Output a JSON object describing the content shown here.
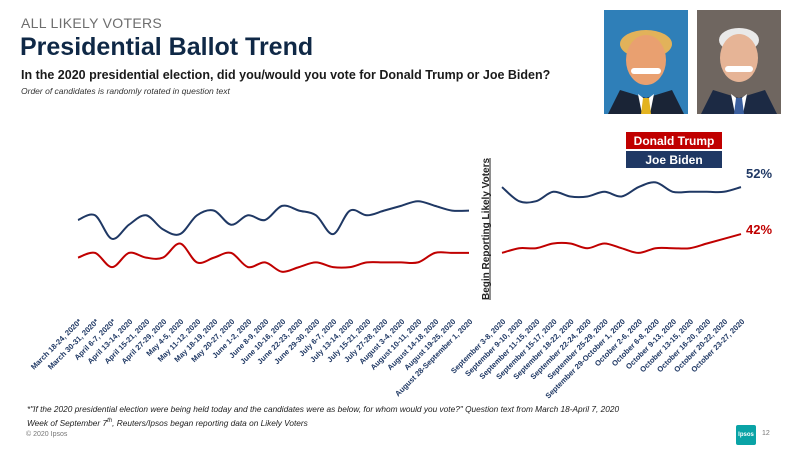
{
  "header": {
    "supertitle": "ALL LIKELY VOTERS",
    "title": "Presidential Ballot Trend",
    "question": "In the 2020 presidential election, did you/would you vote for Donald Trump or Joe Biden?",
    "note": "Order of candidates is randomly rotated in question text"
  },
  "photos": {
    "trump": "Donald Trump photo",
    "biden": "Joe Biden photo"
  },
  "footer": {
    "footnote_line1": "*\"If the 2020 presidential election were being held today and the candidates were as below, for whom would you vote?\" Question text from March 18-April 7, 2020",
    "footnote_line2_pre": "Week of September 7",
    "footnote_line2_sup": "th",
    "footnote_line2_post": ", Reuters/Ipsos began reporting data on Likely Voters",
    "copyright": "© 2020 Ipsos",
    "page": "12",
    "logo": "Ipsos"
  },
  "chart_data": {
    "type": "line",
    "divider_label": "Begin Reporting Likely Voters",
    "legend": [
      {
        "name": "Donald Trump",
        "color": "#c00000"
      },
      {
        "name": "Joe Biden",
        "color": "#1f3864"
      }
    ],
    "end_labels": {
      "biden": "52%",
      "trump": "42%"
    },
    "ylim": [
      28,
      62
    ],
    "segments": [
      {
        "x": [
          "March 18-24, 2020*",
          "March 30-31, 2020*",
          "April 6-7, 2020*",
          "April 13-14, 2020",
          "April 15-21, 2020",
          "April 27-29, 2020",
          "May 4-5, 2020",
          "May 11-12, 2020",
          "May 18-19, 2020",
          "May 20-27, 2020",
          "June 1-2, 2020",
          "June 8-9, 2020",
          "June 10-16, 2020",
          "June 22-23, 2020",
          "June 29-30, 2020",
          "July 6-7, 2020",
          "July 13-14, 2020",
          "July 15-21, 2020",
          "July 27-28, 2020",
          "August 3-4, 2020",
          "August 10-11, 2020",
          "August 14-18, 2020",
          "August 19-25, 2020",
          "August 28-September 1, 2020"
        ],
        "series": [
          {
            "name": "Joe Biden",
            "values": [
              45,
              46,
              41,
              44,
              46,
              43,
              42,
              46,
              47,
              44,
              46,
              45,
              48,
              47,
              46,
              42,
              47,
              46,
              47,
              48,
              49,
              48,
              47,
              47
            ]
          },
          {
            "name": "Donald Trump",
            "values": [
              37,
              38,
              35,
              38,
              37,
              37,
              40,
              36,
              37,
              38,
              35,
              36,
              34,
              35,
              36,
              35,
              35,
              36,
              36,
              36,
              36,
              38,
              38,
              38
            ]
          }
        ]
      },
      {
        "x": [
          "September 3-8, 2020",
          "September 9-10, 2020",
          "September 11-15, 2020",
          "September 15-17, 2020",
          "September 18-22, 2020",
          "September 22-24, 2020",
          "September 25-29, 2020",
          "September 29-October 1, 2020",
          "October 2-6, 2020",
          "October 6-8, 2020",
          "October 9-13, 2020",
          "October 13-15, 2020",
          "October 16-20, 2020",
          "October 20-22, 2020",
          "October 23-27, 2020"
        ],
        "series": [
          {
            "name": "Joe Biden",
            "values": [
              52,
              49,
              49,
              51,
              50,
              50,
              51,
              50,
              52,
              53,
              51,
              51,
              51,
              51,
              52
            ]
          },
          {
            "name": "Donald Trump",
            "values": [
              38,
              39,
              39,
              40,
              40,
              39,
              40,
              39,
              38,
              39,
              39,
              39,
              40,
              41,
              42
            ]
          }
        ]
      }
    ]
  }
}
